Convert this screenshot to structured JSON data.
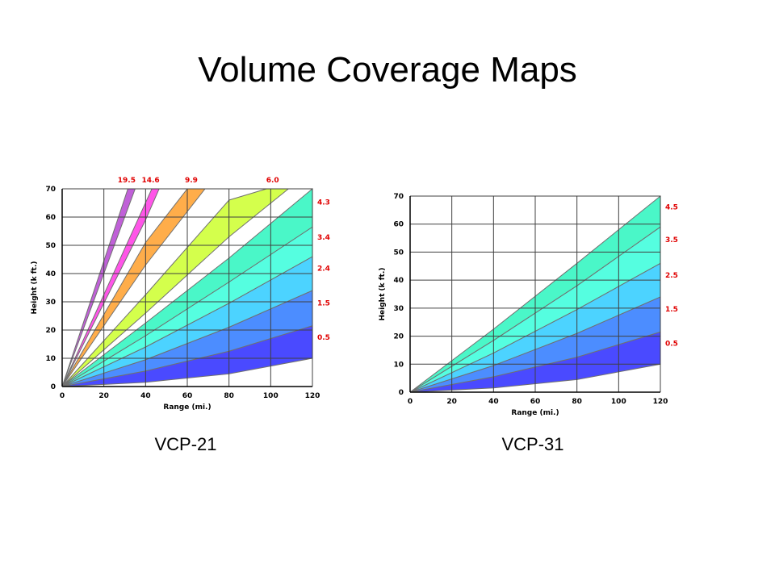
{
  "slide": {
    "title": "Volume Coverage Maps",
    "colors": {
      "grid": "#404040",
      "elevation_label": "#e00000"
    }
  },
  "chart_data": [
    {
      "type": "area",
      "caption": "VCP-21",
      "xlabel": "Range (mi.)",
      "ylabel": "Height (k ft.)",
      "xlim": [
        0,
        120
      ],
      "ylim": [
        0,
        70
      ],
      "x_ticks": [
        "0",
        "20",
        "40",
        "60",
        "80",
        "100",
        "120"
      ],
      "y_ticks": [
        "0",
        "10",
        "20",
        "30",
        "40",
        "50",
        "60",
        "70"
      ],
      "grid": true,
      "bands": [
        {
          "label": "0.5",
          "color": "#4a4aff",
          "lower": [
            [
              0,
              0
            ],
            [
              40,
              1.5
            ],
            [
              80,
              4.5
            ],
            [
              120,
              10
            ]
          ],
          "upper": [
            [
              0,
              0
            ],
            [
              40,
              5.5
            ],
            [
              80,
              12.5
            ],
            [
              120,
              21.5
            ]
          ]
        },
        {
          "label": "1.5",
          "color": "#4c8dff",
          "lower": [
            [
              0,
              0
            ],
            [
              40,
              5.5
            ],
            [
              80,
              12.5
            ],
            [
              120,
              21.5
            ]
          ],
          "upper": [
            [
              0,
              0
            ],
            [
              40,
              9.5
            ],
            [
              80,
              21
            ],
            [
              120,
              34
            ]
          ]
        },
        {
          "label": "2.4",
          "color": "#4cd3ff",
          "lower": [
            [
              0,
              0
            ],
            [
              40,
              9.5
            ],
            [
              80,
              21
            ],
            [
              120,
              34
            ]
          ],
          "upper": [
            [
              0,
              0
            ],
            [
              40,
              14
            ],
            [
              80,
              29.5
            ],
            [
              120,
              46
            ]
          ]
        },
        {
          "label": "3.4",
          "color": "#55fee0",
          "lower": [
            [
              0,
              0
            ],
            [
              40,
              14
            ],
            [
              80,
              29.5
            ],
            [
              120,
              46
            ]
          ],
          "upper": [
            [
              0,
              0
            ],
            [
              40,
              18
            ],
            [
              80,
              37
            ],
            [
              120,
              56.5
            ]
          ]
        },
        {
          "label": "4.3",
          "color": "#4af7c8",
          "lower": [
            [
              0,
              0
            ],
            [
              40,
              18
            ],
            [
              80,
              37
            ],
            [
              120,
              56.5
            ]
          ],
          "upper": [
            [
              0,
              0
            ],
            [
              40,
              22.5
            ],
            [
              80,
              45.5
            ],
            [
              120,
              70
            ]
          ]
        },
        {
          "label": "6.0",
          "color": "#d4ff4c",
          "lower": [
            [
              0,
              0
            ],
            [
              40,
              26
            ],
            [
              80,
              53
            ],
            [
              108.5,
              70
            ]
          ],
          "upper": [
            [
              0,
              0
            ],
            [
              40,
              32.5
            ],
            [
              80,
              66
            ],
            [
              98,
              70
            ]
          ]
        },
        {
          "label": "9.9",
          "color": "#ffad4a",
          "lower": [
            [
              0,
              0
            ],
            [
              40,
              43
            ],
            [
              68.5,
              70
            ]
          ],
          "upper": [
            [
              0,
              0
            ],
            [
              40,
              51
            ],
            [
              60,
              70
            ]
          ]
        },
        {
          "label": "14.6",
          "color": "#ff55e8",
          "lower": [
            [
              0,
              0
            ],
            [
              40,
              59
            ],
            [
              46.5,
              70
            ]
          ],
          "upper": [
            [
              0,
              0
            ],
            [
              43,
              70
            ]
          ]
        },
        {
          "label": "19.5",
          "color": "#c060d8",
          "lower": [
            [
              0,
              0
            ],
            [
              35,
              70
            ]
          ],
          "upper": [
            [
              0,
              0
            ],
            [
              31.5,
              70
            ]
          ]
        }
      ],
      "elevation_labels_top": [
        "19.5",
        "14.6",
        "9.9",
        "6.0"
      ],
      "elevation_labels_right": [
        "4.3",
        "3.4",
        "2.4",
        "1.5",
        "0.5"
      ]
    },
    {
      "type": "area",
      "caption": "VCP-31",
      "xlabel": "Range (mi.)",
      "ylabel": "Height (k ft.)",
      "xlim": [
        0,
        120
      ],
      "ylim": [
        0,
        70
      ],
      "x_ticks": [
        "0",
        "20",
        "40",
        "60",
        "80",
        "100",
        "120"
      ],
      "y_ticks": [
        "0",
        "10",
        "20",
        "30",
        "40",
        "50",
        "60",
        "70"
      ],
      "grid": true,
      "bands": [
        {
          "label": "0.5",
          "color": "#4a4aff",
          "lower": [
            [
              0,
              0
            ],
            [
              40,
              1.5
            ],
            [
              80,
              4.5
            ],
            [
              120,
              10
            ]
          ],
          "upper": [
            [
              0,
              0
            ],
            [
              40,
              5.5
            ],
            [
              80,
              12.5
            ],
            [
              120,
              21.5
            ]
          ]
        },
        {
          "label": "1.5",
          "color": "#4c8dff",
          "lower": [
            [
              0,
              0
            ],
            [
              40,
              5.5
            ],
            [
              80,
              12.5
            ],
            [
              120,
              21.5
            ]
          ],
          "upper": [
            [
              0,
              0
            ],
            [
              40,
              9.5
            ],
            [
              80,
              21
            ],
            [
              120,
              34
            ]
          ]
        },
        {
          "label": "2.5",
          "color": "#4cd3ff",
          "lower": [
            [
              0,
              0
            ],
            [
              40,
              9.5
            ],
            [
              80,
              21
            ],
            [
              120,
              34
            ]
          ],
          "upper": [
            [
              0,
              0
            ],
            [
              40,
              14
            ],
            [
              80,
              29.5
            ],
            [
              120,
              46
            ]
          ]
        },
        {
          "label": "3.5",
          "color": "#55fee0",
          "lower": [
            [
              0,
              0
            ],
            [
              40,
              14
            ],
            [
              80,
              29.5
            ],
            [
              120,
              46
            ]
          ],
          "upper": [
            [
              0,
              0
            ],
            [
              40,
              18.5
            ],
            [
              80,
              38
            ],
            [
              120,
              59
            ]
          ]
        },
        {
          "label": "4.5",
          "color": "#4af7c8",
          "lower": [
            [
              0,
              0
            ],
            [
              40,
              18.5
            ],
            [
              80,
              38
            ],
            [
              120,
              59
            ]
          ],
          "upper": [
            [
              0,
              0
            ],
            [
              40,
              22.5
            ],
            [
              80,
              46
            ],
            [
              120,
              70
            ]
          ]
        }
      ],
      "elevation_labels_top": [],
      "elevation_labels_right": [
        "4.5",
        "3.5",
        "2.5",
        "1.5",
        "0.5"
      ]
    }
  ]
}
